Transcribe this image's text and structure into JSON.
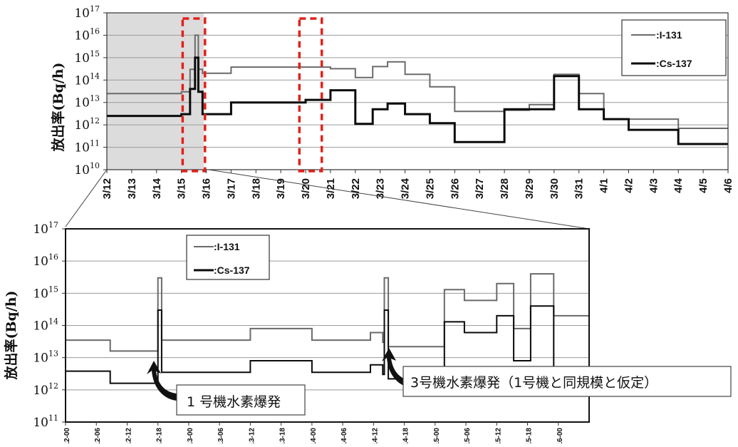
{
  "chart_data": [
    {
      "type": "line",
      "step": true,
      "ylabel": "放出率(Bq/h)",
      "y_scale": "log",
      "ylim": [
        "1e10",
        "1e17"
      ],
      "y_tick_labels": [
        {
          "base": "10",
          "exp": "10"
        },
        {
          "base": "10",
          "exp": "11"
        },
        {
          "base": "10",
          "exp": "12"
        },
        {
          "base": "10",
          "exp": "13"
        },
        {
          "base": "10",
          "exp": "14"
        },
        {
          "base": "10",
          "exp": "15"
        },
        {
          "base": "10",
          "exp": "16"
        },
        {
          "base": "10",
          "exp": "17"
        }
      ],
      "x_tick_labels": [
        "3/12",
        "3/13",
        "3/14",
        "3/15",
        "3/16",
        "3/17",
        "3/18",
        "3/19",
        "3/20",
        "3/21",
        "3/22",
        "3/23",
        "3/24",
        "3/25",
        "3/26",
        "3/27",
        "3/28",
        "3/29",
        "3/30",
        "3/31",
        "4/1",
        "4/2",
        "4/3",
        "4/4",
        "4/5",
        "4/6"
      ],
      "legend": {
        "position": "top-right",
        "entries": [
          ":I-131",
          ":Cs-137"
        ]
      },
      "grid": {
        "horizontal": true,
        "vertical": false
      },
      "series": [
        {
          "name": ":I-131",
          "color": "#6a6a6a",
          "width": 2,
          "points": [
            [
              0,
              "2.5e13"
            ],
            [
              3.0,
              "2.5e13"
            ],
            [
              3.0,
              "3e13"
            ],
            [
              3.35,
              "3e13"
            ],
            [
              3.35,
              "3e14"
            ],
            [
              3.55,
              "3e14"
            ],
            [
              3.55,
              "1e16"
            ],
            [
              3.68,
              "1e16"
            ],
            [
              3.68,
              "3e14"
            ],
            [
              3.85,
              "3e14"
            ],
            [
              3.85,
              "2e14"
            ],
            [
              5.0,
              "2e14"
            ],
            [
              5.0,
              "3.8e14"
            ],
            [
              9.0,
              "3.8e14"
            ],
            [
              9.0,
              "3.2e14"
            ],
            [
              10.0,
              "3.2e14"
            ],
            [
              10.0,
              "1.3e14"
            ],
            [
              10.7,
              "1.3e14"
            ],
            [
              10.7,
              "4e14"
            ],
            [
              11.3,
              "4e14"
            ],
            [
              11.3,
              "6.5e14"
            ],
            [
              12.0,
              "6.5e14"
            ],
            [
              12.0,
              "1.8e14"
            ],
            [
              13.0,
              "1.8e14"
            ],
            [
              13.0,
              "5e13"
            ],
            [
              14.0,
              "5e13"
            ],
            [
              14.0,
              "4e12"
            ],
            [
              16.0,
              "4e12"
            ],
            [
              16.0,
              "4.5e12"
            ],
            [
              17.0,
              "4.5e12"
            ],
            [
              17.0,
              "8e12"
            ],
            [
              18.0,
              "8e12"
            ],
            [
              18.0,
              "1.8e14"
            ],
            [
              19.0,
              "1.8e14"
            ],
            [
              19.0,
              "2.5e13"
            ],
            [
              20.0,
              "2.5e13"
            ],
            [
              20.0,
              "1.8e12"
            ],
            [
              23.0,
              "1.8e12"
            ],
            [
              23.0,
              "7e11"
            ],
            [
              25.0,
              "7e11"
            ]
          ]
        },
        {
          "name": ":Cs-137",
          "color": "#0a0a0a",
          "width": 3,
          "points": [
            [
              0,
              "2.5e12"
            ],
            [
              3.0,
              "2.5e12"
            ],
            [
              3.0,
              "3e12"
            ],
            [
              3.35,
              "3e12"
            ],
            [
              3.35,
              "4e13"
            ],
            [
              3.55,
              "4e13"
            ],
            [
              3.55,
              "1e15"
            ],
            [
              3.68,
              "1e15"
            ],
            [
              3.68,
              "3e13"
            ],
            [
              3.85,
              "3e13"
            ],
            [
              3.85,
              "3e12"
            ],
            [
              5.0,
              "3e12"
            ],
            [
              5.0,
              "1e13"
            ],
            [
              8.0,
              "1e13"
            ],
            [
              8.0,
              "1.3e13"
            ],
            [
              9.0,
              "1.3e13"
            ],
            [
              9.0,
              "3.5e13"
            ],
            [
              10.0,
              "3.5e13"
            ],
            [
              10.0,
              "1.1e12"
            ],
            [
              10.7,
              "1.1e12"
            ],
            [
              10.7,
              "5e12"
            ],
            [
              11.3,
              "5e12"
            ],
            [
              11.3,
              "9e12"
            ],
            [
              12.0,
              "9e12"
            ],
            [
              12.0,
              "3e12"
            ],
            [
              13.0,
              "3e12"
            ],
            [
              13.0,
              "1.2e12"
            ],
            [
              14.0,
              "1.2e12"
            ],
            [
              14.0,
              "1.7e11"
            ],
            [
              16.0,
              "1.7e11"
            ],
            [
              16.0,
              "5e12"
            ],
            [
              18.0,
              "5e12"
            ],
            [
              18.0,
              "1.5e14"
            ],
            [
              19.0,
              "1.5e14"
            ],
            [
              19.0,
              "5e12"
            ],
            [
              20.0,
              "5e12"
            ],
            [
              20.0,
              "1.8e12"
            ],
            [
              21.0,
              "1.8e12"
            ],
            [
              21.0,
              "6e11"
            ],
            [
              23.0,
              "6e11"
            ],
            [
              23.0,
              "1.4e11"
            ],
            [
              25.0,
              "1.4e11"
            ]
          ]
        }
      ],
      "highlights": [
        {
          "type": "shaded-range",
          "x": [
            0,
            3.9
          ],
          "color": "#dcdcdc"
        },
        {
          "type": "dashed-box",
          "x": [
            3.05,
            3.95
          ],
          "color": "#e0221a"
        },
        {
          "type": "dashed-box",
          "x": [
            7.75,
            8.65
          ],
          "color": "#e0221a"
        }
      ]
    },
    {
      "type": "line",
      "step": true,
      "ylabel": "放出率(Bq/h)",
      "y_scale": "log",
      "ylim": [
        "1e11",
        "1e17"
      ],
      "y_tick_labels": [
        {
          "base": "10",
          "exp": "11"
        },
        {
          "base": "10",
          "exp": "12"
        },
        {
          "base": "10",
          "exp": "13"
        },
        {
          "base": "10",
          "exp": "14"
        },
        {
          "base": "10",
          "exp": "15"
        },
        {
          "base": "10",
          "exp": "16"
        },
        {
          "base": "10",
          "exp": "17"
        }
      ],
      "x_tick_labels": [
        "3/12-00",
        "3/12-06",
        "3/12-12",
        "3/12-18",
        "3/13-00",
        "3/13-06",
        "3/13-12",
        "3/13-18",
        "3/14-00",
        "3/14-06",
        "3/14-12",
        "3/14-18",
        "3/15-00",
        "3/15-06",
        "3/15-12",
        "3/15-18",
        "3/16-00"
      ],
      "legend": {
        "position": "top-left",
        "entries": [
          ":I-131",
          ":Cs-137"
        ]
      },
      "grid": {
        "horizontal": true,
        "vertical": false
      },
      "annotations": [
        {
          "text": "1 号機水素爆発",
          "x": 3.05
        },
        {
          "text": "3号機水素爆発（1号機と同規模と仮定）",
          "x": 10.35
        }
      ],
      "series": [
        {
          "name": ":I-131",
          "color": "#6a6a6a",
          "width": 2,
          "points": [
            [
              0,
              "3.5e13"
            ],
            [
              1.45,
              "3.5e13"
            ],
            [
              1.45,
              "1.6e13"
            ],
            [
              3.0,
              "1.6e13"
            ],
            [
              3.0,
              "3e15"
            ],
            [
              3.12,
              "3e15"
            ],
            [
              3.12,
              "3.5e13"
            ],
            [
              6.0,
              "3.5e13"
            ],
            [
              6.0,
              "8e13"
            ],
            [
              8.0,
              "8e13"
            ],
            [
              8.0,
              "3.5e13"
            ],
            [
              9.9,
              "3.5e13"
            ],
            [
              9.9,
              "6e13"
            ],
            [
              10.3,
              "6e13"
            ],
            [
              10.3,
              "3e13"
            ],
            [
              10.35,
              "3e13"
            ],
            [
              10.35,
              "3e15"
            ],
            [
              10.48,
              "3e15"
            ],
            [
              10.48,
              "2.2e13"
            ],
            [
              12.3,
              "2.2e13"
            ],
            [
              12.3,
              "1.3e15"
            ],
            [
              12.95,
              "1.3e15"
            ],
            [
              12.95,
              "6e14"
            ],
            [
              14.0,
              "6e14"
            ],
            [
              14.0,
              "2e15"
            ],
            [
              14.55,
              "2e15"
            ],
            [
              14.55,
              "8e13"
            ],
            [
              15.1,
              "8e13"
            ],
            [
              15.1,
              "4e15"
            ],
            [
              15.85,
              "4e15"
            ],
            [
              15.85,
              "2e14"
            ],
            [
              17.0,
              "2e14"
            ]
          ]
        },
        {
          "name": ":Cs-137",
          "color": "#0a0a0a",
          "width": 2,
          "points": [
            [
              0,
              "3.8e12"
            ],
            [
              1.45,
              "3.8e12"
            ],
            [
              1.45,
              "1.6e12"
            ],
            [
              3.0,
              "1.6e12"
            ],
            [
              3.0,
              "3e14"
            ],
            [
              3.12,
              "3e14"
            ],
            [
              3.12,
              "3.5e12"
            ],
            [
              6.0,
              "3.5e12"
            ],
            [
              6.0,
              "8e12"
            ],
            [
              8.0,
              "8e12"
            ],
            [
              8.0,
              "3.5e12"
            ],
            [
              9.9,
              "3.5e12"
            ],
            [
              9.9,
              "6e12"
            ],
            [
              10.3,
              "6e12"
            ],
            [
              10.3,
              "3e12"
            ],
            [
              10.35,
              "3e12"
            ],
            [
              10.35,
              "3e14"
            ],
            [
              10.48,
              "3e14"
            ],
            [
              10.48,
              "2.2e12"
            ],
            [
              12.3,
              "2.2e12"
            ],
            [
              12.3,
              "1.3e14"
            ],
            [
              12.95,
              "1.3e14"
            ],
            [
              12.95,
              "6e13"
            ],
            [
              14.0,
              "6e13"
            ],
            [
              14.0,
              "2e14"
            ],
            [
              14.55,
              "2e14"
            ],
            [
              14.55,
              "8e12"
            ],
            [
              15.1,
              "8e12"
            ],
            [
              15.1,
              "4e14"
            ],
            [
              15.85,
              "4e14"
            ],
            [
              15.85,
              "3e12"
            ],
            [
              17.0,
              "3e12"
            ]
          ]
        }
      ]
    }
  ]
}
